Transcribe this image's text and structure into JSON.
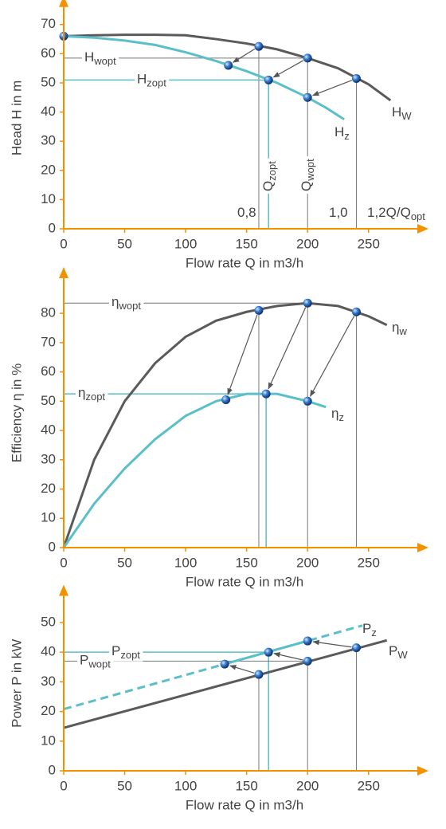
{
  "chart_data": [
    {
      "type": "line",
      "ylabel": "Head H in m",
      "xlabel": "Flow rate Q in m3/h",
      "xlim": [
        0,
        290
      ],
      "ylim": [
        0,
        76
      ],
      "xticks": [
        0,
        50,
        100,
        150,
        200,
        250
      ],
      "yticks": [
        0,
        10,
        20,
        30,
        40,
        50,
        60,
        70
      ],
      "series": [
        {
          "label": {
            "text": "H",
            "sub": "W"
          },
          "opt_label": {
            "text": "H",
            "sub": "wopt"
          },
          "color": "#5a5a5a",
          "line_style": "solid",
          "x": [
            0,
            25,
            50,
            75,
            100,
            125,
            150,
            175,
            200,
            225,
            250,
            268
          ],
          "values": [
            66,
            66.3,
            66.5,
            66.5,
            66.3,
            65,
            63.5,
            61.5,
            58.5,
            55,
            49.5,
            44
          ],
          "marker_x": [
            160,
            200,
            240
          ],
          "markers": [
            62.5,
            58.5,
            51.5
          ]
        },
        {
          "label": {
            "text": "H",
            "sub": "z"
          },
          "opt_label": {
            "text": "H",
            "sub": "zopt"
          },
          "color": "#5bbfc9",
          "line_style": "solid",
          "x": [
            0,
            25,
            50,
            75,
            100,
            125,
            150,
            175,
            200,
            215,
            230
          ],
          "values": [
            66,
            65.5,
            64.5,
            63,
            60.5,
            57.5,
            54,
            50,
            45,
            41.5,
            37.5
          ],
          "marker_x": [
            0,
            135,
            168,
            200
          ],
          "markers": [
            66,
            56,
            51,
            45
          ]
        }
      ],
      "annotations": [
        {
          "text": "0,8"
        },
        {
          "text": "1,0"
        },
        {
          "text": "1,2Q/Q",
          "sub": "opt"
        },
        {
          "text": "Q",
          "sub": "zopt"
        },
        {
          "text": "Q",
          "sub": "wopt"
        }
      ]
    },
    {
      "type": "line",
      "ylabel": "Efficiency η in %",
      "xlabel": "Flow rate Q in m3/h",
      "xlim": [
        0,
        290
      ],
      "ylim": [
        0,
        92
      ],
      "xticks": [
        0,
        50,
        100,
        150,
        200,
        250
      ],
      "yticks": [
        0,
        10,
        20,
        30,
        40,
        50,
        60,
        70,
        80
      ],
      "series": [
        {
          "label": {
            "text": "η",
            "sub": "w"
          },
          "opt_label": {
            "text": "η",
            "sub": "wopt"
          },
          "color": "#5a5a5a",
          "line_style": "solid",
          "x": [
            0,
            25,
            50,
            75,
            100,
            125,
            150,
            175,
            200,
            225,
            250,
            265
          ],
          "values": [
            0,
            30,
            50,
            63,
            72,
            77.5,
            80.5,
            82.5,
            83.5,
            82.5,
            79,
            76
          ],
          "marker_x": [
            160,
            200,
            240
          ],
          "markers": [
            81,
            83.5,
            80.5
          ]
        },
        {
          "label": {
            "text": "η",
            "sub": "z"
          },
          "opt_label": {
            "text": "η",
            "sub": "zopt"
          },
          "color": "#5bbfc9",
          "line_style": "solid",
          "x": [
            0,
            25,
            50,
            75,
            100,
            125,
            150,
            175,
            200,
            215
          ],
          "values": [
            0,
            15,
            27,
            37,
            45,
            50,
            52.5,
            52.5,
            50,
            48
          ],
          "marker_x": [
            133,
            166,
            200
          ],
          "markers": [
            50.5,
            52.5,
            50
          ]
        }
      ]
    },
    {
      "type": "line",
      "ylabel": "Power P in kW",
      "xlabel": "Flow rate Q in m3/h",
      "xlim": [
        0,
        290
      ],
      "ylim": [
        0,
        59
      ],
      "xticks": [
        0,
        50,
        100,
        150,
        200,
        250
      ],
      "yticks": [
        0,
        10,
        20,
        30,
        40,
        50
      ],
      "series": [
        {
          "label": {
            "text": "P",
            "sub": "W"
          },
          "opt_label": {
            "text": "P",
            "sub": "wopt"
          },
          "color": "#5a5a5a",
          "line_style": "solid",
          "x": [
            0,
            265
          ],
          "values": [
            14.5,
            44
          ],
          "marker_x": [
            160,
            200,
            240
          ],
          "markers": [
            32.5,
            37,
            41.5
          ]
        },
        {
          "label": {
            "text": "P",
            "sub": "z"
          },
          "opt_label": {
            "text": "P",
            "sub": "zopt"
          },
          "color": "#5bbfc9",
          "line_style": "dashed",
          "x": [
            0,
            245
          ],
          "values": [
            20.8,
            49
          ],
          "marker_x": [
            132,
            168,
            200
          ],
          "markers": [
            36,
            40,
            43.8
          ]
        }
      ]
    }
  ]
}
